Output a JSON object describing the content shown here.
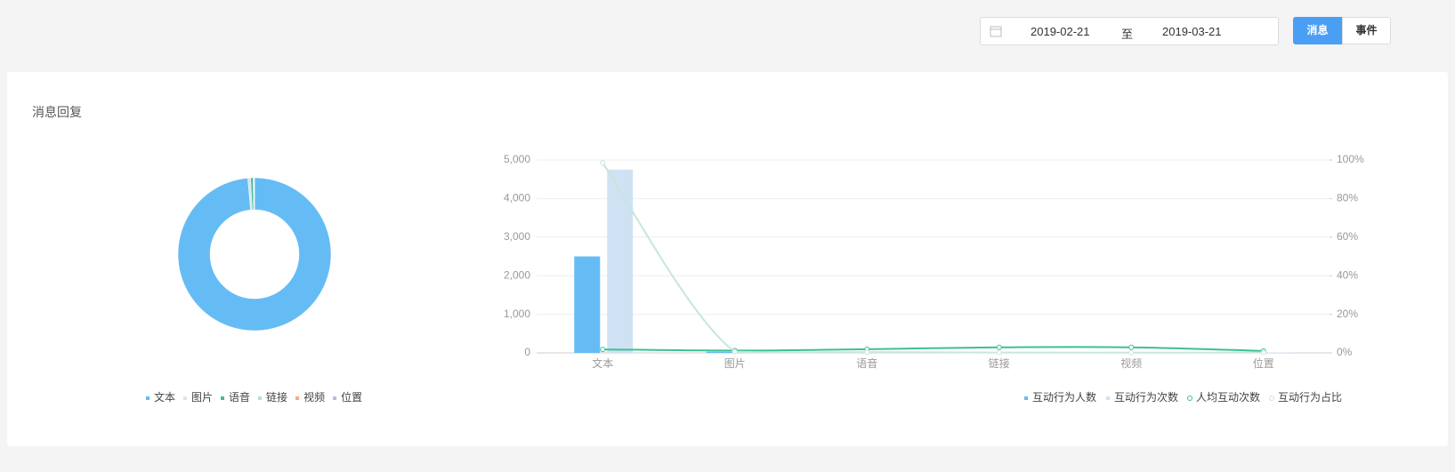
{
  "header": {
    "date_start": "2019-02-21",
    "date_separator": "至",
    "date_end": "2019-03-21",
    "tabs": [
      "消息",
      "事件"
    ],
    "active_tab": 0
  },
  "card": {
    "title": "消息回复"
  },
  "chart_data": [
    {
      "type": "pie",
      "donut": true,
      "categories": [
        "文本",
        "图片",
        "语音",
        "链接",
        "视频",
        "位置"
      ],
      "values": [
        98.6,
        0.6,
        0.5,
        0.2,
        0,
        0.1
      ],
      "colors": [
        "#65bcf5",
        "#d6e4f0",
        "#3cbf8e",
        "#b8e0d2",
        "#f5a97f",
        "#c7b3e6"
      ]
    },
    {
      "type": "combo",
      "categories": [
        "文本",
        "图片",
        "语音",
        "链接",
        "视频",
        "位置"
      ],
      "series": [
        {
          "name": "互动行为人数",
          "type": "bar",
          "color": "#65bcf5",
          "values": [
            2500,
            30,
            10,
            10,
            5,
            5
          ]
        },
        {
          "name": "互动行为次数",
          "type": "bar",
          "color": "#cfe2f3",
          "values": [
            4750,
            40,
            15,
            15,
            10,
            10
          ]
        },
        {
          "name": "人均互动次数",
          "type": "line",
          "axis": "y2",
          "color": "#3cbf98",
          "values": [
            1.8,
            1.2,
            1.9,
            2.9,
            2.9,
            1.0
          ]
        },
        {
          "name": "互动行为占比",
          "type": "line",
          "axis": "y2",
          "color": "#c6e6dc",
          "values": [
            98.5,
            0.6,
            0.4,
            0.2,
            0.1,
            0.2
          ]
        }
      ],
      "ylim": [
        0,
        5000
      ],
      "yticks": [
        0,
        {
          "value": 1000,
          "label": "1,000"
        },
        {
          "value": 2000,
          "label": "2,000"
        },
        {
          "value": 3000,
          "label": "3,000"
        },
        {
          "value": 4000,
          "label": "4,000"
        },
        {
          "value": 5000,
          "label": "5,000"
        }
      ],
      "y2lim": [
        0,
        100
      ],
      "y2ticks": [
        {
          "value": 0,
          "label": "0%"
        },
        {
          "value": 20,
          "label": "20%"
        },
        {
          "value": 40,
          "label": "40%"
        },
        {
          "value": 60,
          "label": "60%"
        },
        {
          "value": 80,
          "label": "80%"
        },
        {
          "value": 100,
          "label": "100%"
        }
      ],
      "grid": true
    }
  ]
}
